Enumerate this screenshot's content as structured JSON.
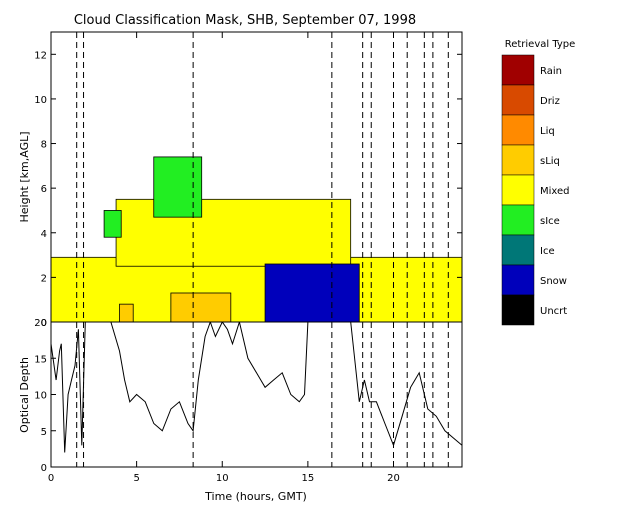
{
  "chart_data": [
    {
      "type": "heatmap",
      "title": "Cloud Classification Mask, SHB, September 07, 1998",
      "ylabel": "Height [km,AGL]",
      "xlim": [
        0,
        24
      ],
      "ylim": [
        0,
        13
      ],
      "yticks": [
        0,
        2,
        4,
        6,
        8,
        10,
        12
      ],
      "legend_title": "Retrieval Type",
      "legend": [
        {
          "label": "Rain",
          "color": "#a00000"
        },
        {
          "label": "Driz",
          "color": "#d84a00"
        },
        {
          "label": "Liq",
          "color": "#ff8a00"
        },
        {
          "label": "sLiq",
          "color": "#ffcc00"
        },
        {
          "label": "Mixed",
          "color": "#ffff00"
        },
        {
          "label": "sIce",
          "color": "#22ee22"
        },
        {
          "label": "Ice",
          "color": "#007777"
        },
        {
          "label": "Snow",
          "color": "#0000bb"
        },
        {
          "label": "Uncrt",
          "color": "#000000"
        }
      ],
      "regions": [
        {
          "type": "Mixed",
          "x": [
            0,
            24
          ],
          "y": [
            0,
            2.9
          ],
          "approx": true
        },
        {
          "type": "Mixed",
          "x": [
            3.8,
            17.5
          ],
          "y": [
            2.5,
            5.5
          ],
          "approx": true
        },
        {
          "type": "sIce",
          "x": [
            6.0,
            8.8
          ],
          "y": [
            4.7,
            7.4
          ],
          "approx": true
        },
        {
          "type": "sIce",
          "x": [
            3.1,
            4.1
          ],
          "y": [
            3.8,
            5.0
          ],
          "approx": true
        },
        {
          "type": "Snow",
          "x": [
            12.5,
            18.0
          ],
          "y": [
            0,
            2.6
          ]
        },
        {
          "type": "sLiq",
          "x": [
            7.0,
            10.5
          ],
          "y": [
            0,
            1.3
          ],
          "approx": true
        },
        {
          "type": "sLiq",
          "x": [
            4.0,
            4.8
          ],
          "y": [
            0,
            0.8
          ],
          "approx": true
        }
      ],
      "dashed_lines_x": [
        1.5,
        1.9,
        8.3,
        16.4,
        18.2,
        18.7,
        20.0,
        20.8,
        21.8,
        22.3,
        23.2
      ]
    },
    {
      "type": "line",
      "xlabel": "Time (hours, GMT)",
      "ylabel": "Optical Depth",
      "xlim": [
        0,
        24
      ],
      "ylim": [
        0,
        20
      ],
      "xticks": [
        0,
        5,
        10,
        15,
        20
      ],
      "yticks": [
        0,
        5,
        10,
        15,
        20
      ],
      "series": [
        {
          "x": [
            0.0,
            0.3,
            0.5,
            0.6,
            0.8,
            1.0,
            1.2,
            1.4,
            1.6,
            1.8,
            2.0,
            2.2,
            2.5,
            3.0,
            3.5,
            4.0,
            4.3,
            4.6,
            5.0,
            5.5,
            6.0,
            6.5,
            7.0,
            7.5,
            8.0,
            8.3,
            8.6,
            9.0,
            9.3,
            9.6,
            10.0,
            10.3,
            10.6,
            11.0,
            11.5,
            12.0,
            12.5,
            13.0,
            13.5,
            14.0,
            14.5,
            14.8,
            15.0,
            15.5,
            16.0,
            16.5,
            17.0,
            17.5,
            18.0,
            18.3,
            18.6,
            19.0,
            19.5,
            20.0,
            20.5,
            21.0,
            21.5,
            22.0,
            22.5,
            23.0,
            23.5,
            24.0
          ],
          "y": [
            17,
            12,
            16,
            17,
            2,
            10,
            12,
            14,
            19,
            3,
            20,
            20,
            20,
            20,
            20,
            16,
            12,
            9,
            10,
            9,
            6,
            5,
            8,
            9,
            6,
            5,
            12,
            18,
            20,
            18,
            20,
            19,
            17,
            20,
            15,
            13,
            11,
            12,
            13,
            10,
            9,
            10,
            20,
            20,
            20,
            20,
            20,
            20,
            9,
            12,
            9,
            9,
            6,
            3,
            7,
            11,
            13,
            8,
            7,
            5,
            4,
            3
          ]
        }
      ]
    }
  ]
}
